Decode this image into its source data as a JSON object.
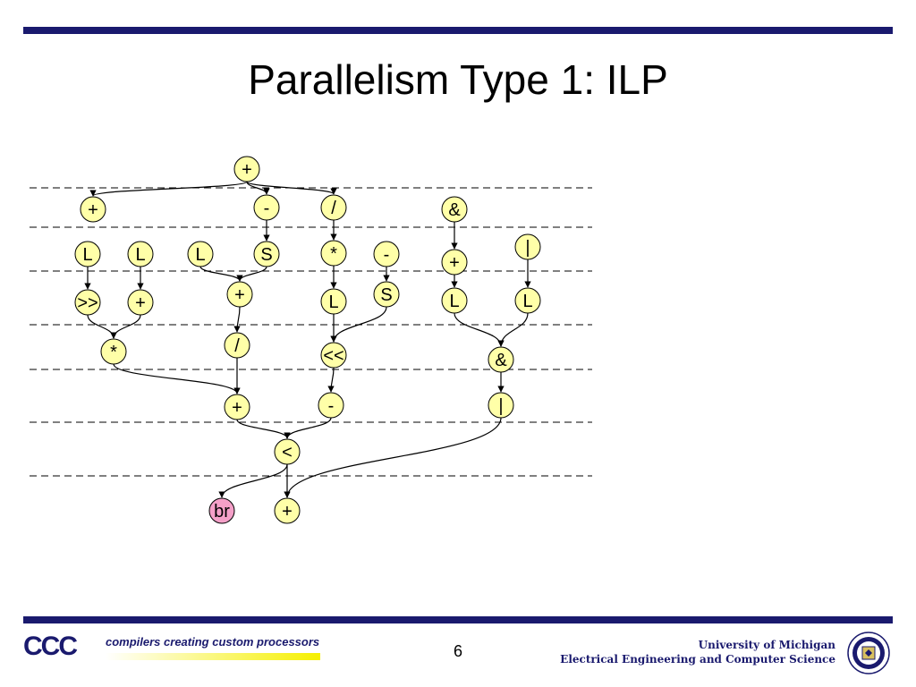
{
  "slide": {
    "title": "Parallelism Type 1:  ILP",
    "page_number": "6"
  },
  "footer": {
    "logo_mark": "CCC",
    "logo_tagline": "compilers creating custom processors",
    "university": "University of Michigan",
    "department": "Electrical Engineering and Computer Science"
  },
  "colors": {
    "bar": "#1a1a6e",
    "node_fill": "#ffffa8",
    "branch_fill": "#f4a0c8"
  },
  "nodes": [
    {
      "id": "n-top-add",
      "label": "+"
    },
    {
      "id": "n-add-1",
      "label": "+"
    },
    {
      "id": "n-sub-1",
      "label": "-"
    },
    {
      "id": "n-div-1",
      "label": "/"
    },
    {
      "id": "n-and-1",
      "label": "&"
    },
    {
      "id": "n-load-1",
      "label": "L"
    },
    {
      "id": "n-load-2",
      "label": "L"
    },
    {
      "id": "n-load-3",
      "label": "L"
    },
    {
      "id": "n-store-1",
      "label": "S"
    },
    {
      "id": "n-mul-1",
      "label": "*"
    },
    {
      "id": "n-sub-2",
      "label": "-"
    },
    {
      "id": "n-add-2",
      "label": "+"
    },
    {
      "id": "n-or-1",
      "label": "|"
    },
    {
      "id": "n-shr",
      "label": ">>"
    },
    {
      "id": "n-add-3",
      "label": "+"
    },
    {
      "id": "n-add-4",
      "label": "+"
    },
    {
      "id": "n-load-4",
      "label": "L"
    },
    {
      "id": "n-store-2",
      "label": "S"
    },
    {
      "id": "n-load-5",
      "label": "L"
    },
    {
      "id": "n-load-6",
      "label": "L"
    },
    {
      "id": "n-mul-2",
      "label": "*"
    },
    {
      "id": "n-div-2",
      "label": "/"
    },
    {
      "id": "n-shl",
      "label": "<<"
    },
    {
      "id": "n-and-2",
      "label": "&"
    },
    {
      "id": "n-add-5",
      "label": "+"
    },
    {
      "id": "n-sub-3",
      "label": "-"
    },
    {
      "id": "n-or-2",
      "label": "|"
    },
    {
      "id": "n-lt",
      "label": "<"
    },
    {
      "id": "n-br",
      "label": "br",
      "branch": true
    },
    {
      "id": "n-add-6",
      "label": "+"
    }
  ],
  "edges": [
    [
      "n-top-add",
      "n-add-1"
    ],
    [
      "n-top-add",
      "n-sub-1"
    ],
    [
      "n-top-add",
      "n-div-1"
    ],
    [
      "n-sub-1",
      "n-store-1"
    ],
    [
      "n-div-1",
      "n-mul-1"
    ],
    [
      "n-and-1",
      "n-add-2"
    ],
    [
      "n-or-1",
      "n-load-6"
    ],
    [
      "n-load-1",
      "n-shr"
    ],
    [
      "n-load-2",
      "n-add-3"
    ],
    [
      "n-load-3",
      "n-add-4"
    ],
    [
      "n-store-1",
      "n-add-4"
    ],
    [
      "n-mul-1",
      "n-load-4"
    ],
    [
      "n-sub-2",
      "n-store-2"
    ],
    [
      "n-add-2",
      "n-load-5"
    ],
    [
      "n-shr",
      "n-mul-2"
    ],
    [
      "n-add-3",
      "n-mul-2"
    ],
    [
      "n-add-4",
      "n-div-2"
    ],
    [
      "n-load-4",
      "n-shl"
    ],
    [
      "n-store-2",
      "n-shl"
    ],
    [
      "n-load-5",
      "n-and-2"
    ],
    [
      "n-load-6",
      "n-and-2"
    ],
    [
      "n-mul-2",
      "n-add-5"
    ],
    [
      "n-div-2",
      "n-add-5"
    ],
    [
      "n-shl",
      "n-sub-3"
    ],
    [
      "n-and-2",
      "n-or-2"
    ],
    [
      "n-add-5",
      "n-lt"
    ],
    [
      "n-sub-3",
      "n-lt"
    ],
    [
      "n-lt",
      "n-br"
    ],
    [
      "n-lt",
      "n-add-6"
    ],
    [
      "n-or-2",
      "n-add-6"
    ]
  ]
}
